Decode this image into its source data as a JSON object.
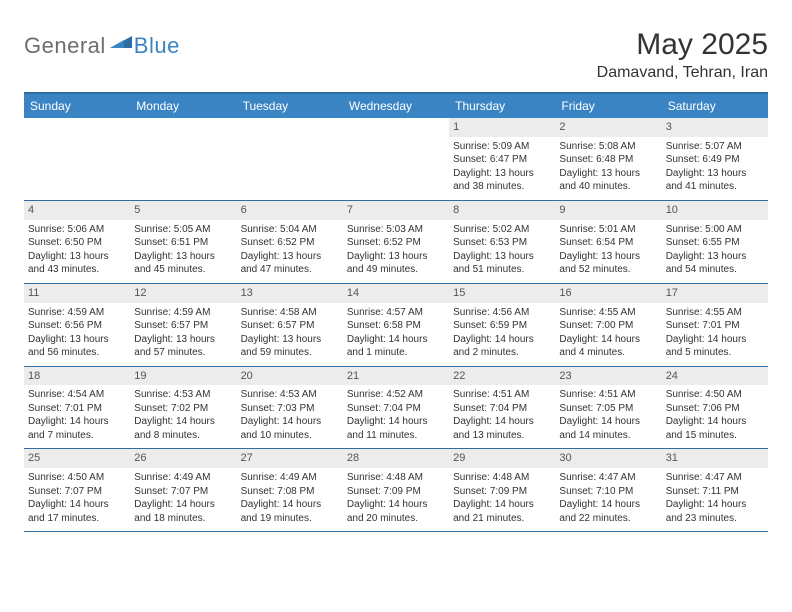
{
  "brand": {
    "part1": "General",
    "part2": "Blue"
  },
  "title": "May 2025",
  "location": "Damavand, Tehran, Iran",
  "colors": {
    "header_bar": "#3b84c4",
    "header_border": "#2f6ea3",
    "daynum_bg": "#ececec",
    "text": "#333333",
    "logo_gray": "#6d6d6d",
    "logo_blue": "#3b84c4",
    "background": "#ffffff"
  },
  "typography": {
    "title_fontsize": 30,
    "location_fontsize": 16,
    "weekday_fontsize": 12,
    "daynum_fontsize": 11,
    "detail_fontsize": 10,
    "logo_fontsize": 22
  },
  "weekdays": [
    "Sunday",
    "Monday",
    "Tuesday",
    "Wednesday",
    "Thursday",
    "Friday",
    "Saturday"
  ],
  "weeks": [
    [
      {
        "num": "",
        "sunrise": "",
        "sunset": "",
        "daylight1": "",
        "daylight2": "",
        "empty": true
      },
      {
        "num": "",
        "sunrise": "",
        "sunset": "",
        "daylight1": "",
        "daylight2": "",
        "empty": true
      },
      {
        "num": "",
        "sunrise": "",
        "sunset": "",
        "daylight1": "",
        "daylight2": "",
        "empty": true
      },
      {
        "num": "",
        "sunrise": "",
        "sunset": "",
        "daylight1": "",
        "daylight2": "",
        "empty": true
      },
      {
        "num": "1",
        "sunrise": "Sunrise: 5:09 AM",
        "sunset": "Sunset: 6:47 PM",
        "daylight1": "Daylight: 13 hours",
        "daylight2": "and 38 minutes."
      },
      {
        "num": "2",
        "sunrise": "Sunrise: 5:08 AM",
        "sunset": "Sunset: 6:48 PM",
        "daylight1": "Daylight: 13 hours",
        "daylight2": "and 40 minutes."
      },
      {
        "num": "3",
        "sunrise": "Sunrise: 5:07 AM",
        "sunset": "Sunset: 6:49 PM",
        "daylight1": "Daylight: 13 hours",
        "daylight2": "and 41 minutes."
      }
    ],
    [
      {
        "num": "4",
        "sunrise": "Sunrise: 5:06 AM",
        "sunset": "Sunset: 6:50 PM",
        "daylight1": "Daylight: 13 hours",
        "daylight2": "and 43 minutes."
      },
      {
        "num": "5",
        "sunrise": "Sunrise: 5:05 AM",
        "sunset": "Sunset: 6:51 PM",
        "daylight1": "Daylight: 13 hours",
        "daylight2": "and 45 minutes."
      },
      {
        "num": "6",
        "sunrise": "Sunrise: 5:04 AM",
        "sunset": "Sunset: 6:52 PM",
        "daylight1": "Daylight: 13 hours",
        "daylight2": "and 47 minutes."
      },
      {
        "num": "7",
        "sunrise": "Sunrise: 5:03 AM",
        "sunset": "Sunset: 6:52 PM",
        "daylight1": "Daylight: 13 hours",
        "daylight2": "and 49 minutes."
      },
      {
        "num": "8",
        "sunrise": "Sunrise: 5:02 AM",
        "sunset": "Sunset: 6:53 PM",
        "daylight1": "Daylight: 13 hours",
        "daylight2": "and 51 minutes."
      },
      {
        "num": "9",
        "sunrise": "Sunrise: 5:01 AM",
        "sunset": "Sunset: 6:54 PM",
        "daylight1": "Daylight: 13 hours",
        "daylight2": "and 52 minutes."
      },
      {
        "num": "10",
        "sunrise": "Sunrise: 5:00 AM",
        "sunset": "Sunset: 6:55 PM",
        "daylight1": "Daylight: 13 hours",
        "daylight2": "and 54 minutes."
      }
    ],
    [
      {
        "num": "11",
        "sunrise": "Sunrise: 4:59 AM",
        "sunset": "Sunset: 6:56 PM",
        "daylight1": "Daylight: 13 hours",
        "daylight2": "and 56 minutes."
      },
      {
        "num": "12",
        "sunrise": "Sunrise: 4:59 AM",
        "sunset": "Sunset: 6:57 PM",
        "daylight1": "Daylight: 13 hours",
        "daylight2": "and 57 minutes."
      },
      {
        "num": "13",
        "sunrise": "Sunrise: 4:58 AM",
        "sunset": "Sunset: 6:57 PM",
        "daylight1": "Daylight: 13 hours",
        "daylight2": "and 59 minutes."
      },
      {
        "num": "14",
        "sunrise": "Sunrise: 4:57 AM",
        "sunset": "Sunset: 6:58 PM",
        "daylight1": "Daylight: 14 hours",
        "daylight2": "and 1 minute."
      },
      {
        "num": "15",
        "sunrise": "Sunrise: 4:56 AM",
        "sunset": "Sunset: 6:59 PM",
        "daylight1": "Daylight: 14 hours",
        "daylight2": "and 2 minutes."
      },
      {
        "num": "16",
        "sunrise": "Sunrise: 4:55 AM",
        "sunset": "Sunset: 7:00 PM",
        "daylight1": "Daylight: 14 hours",
        "daylight2": "and 4 minutes."
      },
      {
        "num": "17",
        "sunrise": "Sunrise: 4:55 AM",
        "sunset": "Sunset: 7:01 PM",
        "daylight1": "Daylight: 14 hours",
        "daylight2": "and 5 minutes."
      }
    ],
    [
      {
        "num": "18",
        "sunrise": "Sunrise: 4:54 AM",
        "sunset": "Sunset: 7:01 PM",
        "daylight1": "Daylight: 14 hours",
        "daylight2": "and 7 minutes."
      },
      {
        "num": "19",
        "sunrise": "Sunrise: 4:53 AM",
        "sunset": "Sunset: 7:02 PM",
        "daylight1": "Daylight: 14 hours",
        "daylight2": "and 8 minutes."
      },
      {
        "num": "20",
        "sunrise": "Sunrise: 4:53 AM",
        "sunset": "Sunset: 7:03 PM",
        "daylight1": "Daylight: 14 hours",
        "daylight2": "and 10 minutes."
      },
      {
        "num": "21",
        "sunrise": "Sunrise: 4:52 AM",
        "sunset": "Sunset: 7:04 PM",
        "daylight1": "Daylight: 14 hours",
        "daylight2": "and 11 minutes."
      },
      {
        "num": "22",
        "sunrise": "Sunrise: 4:51 AM",
        "sunset": "Sunset: 7:04 PM",
        "daylight1": "Daylight: 14 hours",
        "daylight2": "and 13 minutes."
      },
      {
        "num": "23",
        "sunrise": "Sunrise: 4:51 AM",
        "sunset": "Sunset: 7:05 PM",
        "daylight1": "Daylight: 14 hours",
        "daylight2": "and 14 minutes."
      },
      {
        "num": "24",
        "sunrise": "Sunrise: 4:50 AM",
        "sunset": "Sunset: 7:06 PM",
        "daylight1": "Daylight: 14 hours",
        "daylight2": "and 15 minutes."
      }
    ],
    [
      {
        "num": "25",
        "sunrise": "Sunrise: 4:50 AM",
        "sunset": "Sunset: 7:07 PM",
        "daylight1": "Daylight: 14 hours",
        "daylight2": "and 17 minutes."
      },
      {
        "num": "26",
        "sunrise": "Sunrise: 4:49 AM",
        "sunset": "Sunset: 7:07 PM",
        "daylight1": "Daylight: 14 hours",
        "daylight2": "and 18 minutes."
      },
      {
        "num": "27",
        "sunrise": "Sunrise: 4:49 AM",
        "sunset": "Sunset: 7:08 PM",
        "daylight1": "Daylight: 14 hours",
        "daylight2": "and 19 minutes."
      },
      {
        "num": "28",
        "sunrise": "Sunrise: 4:48 AM",
        "sunset": "Sunset: 7:09 PM",
        "daylight1": "Daylight: 14 hours",
        "daylight2": "and 20 minutes."
      },
      {
        "num": "29",
        "sunrise": "Sunrise: 4:48 AM",
        "sunset": "Sunset: 7:09 PM",
        "daylight1": "Daylight: 14 hours",
        "daylight2": "and 21 minutes."
      },
      {
        "num": "30",
        "sunrise": "Sunrise: 4:47 AM",
        "sunset": "Sunset: 7:10 PM",
        "daylight1": "Daylight: 14 hours",
        "daylight2": "and 22 minutes."
      },
      {
        "num": "31",
        "sunrise": "Sunrise: 4:47 AM",
        "sunset": "Sunset: 7:11 PM",
        "daylight1": "Daylight: 14 hours",
        "daylight2": "and 23 minutes."
      }
    ]
  ]
}
